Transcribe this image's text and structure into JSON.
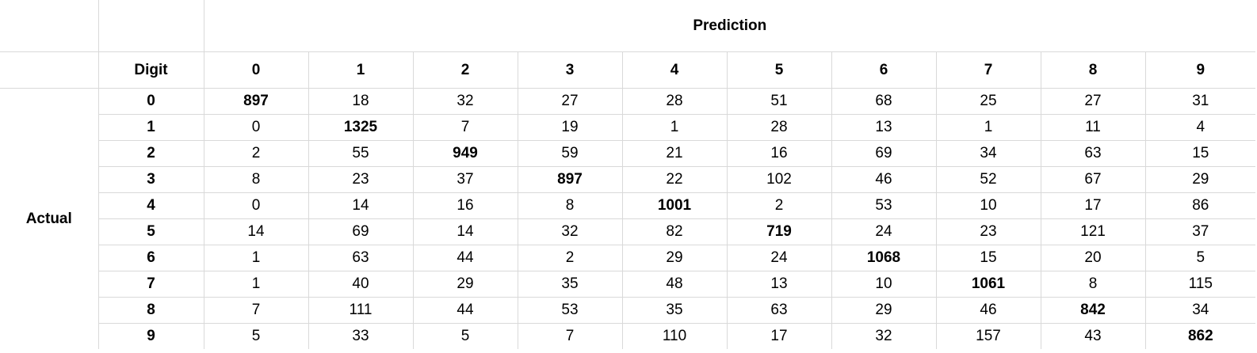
{
  "header": {
    "prediction_label": "Prediction",
    "digit_label": "Digit",
    "actual_label": "Actual"
  },
  "columns": [
    "0",
    "1",
    "2",
    "3",
    "4",
    "5",
    "6",
    "7",
    "8",
    "9"
  ],
  "rows": [
    {
      "digit": "0",
      "values": [
        "897",
        "18",
        "32",
        "27",
        "28",
        "51",
        "68",
        "25",
        "27",
        "31"
      ]
    },
    {
      "digit": "1",
      "values": [
        "0",
        "1325",
        "7",
        "19",
        "1",
        "28",
        "13",
        "1",
        "11",
        "4"
      ]
    },
    {
      "digit": "2",
      "values": [
        "2",
        "55",
        "949",
        "59",
        "21",
        "16",
        "69",
        "34",
        "63",
        "15"
      ]
    },
    {
      "digit": "3",
      "values": [
        "8",
        "23",
        "37",
        "897",
        "22",
        "102",
        "46",
        "52",
        "67",
        "29"
      ]
    },
    {
      "digit": "4",
      "values": [
        "0",
        "14",
        "16",
        "8",
        "1001",
        "2",
        "53",
        "10",
        "17",
        "86"
      ]
    },
    {
      "digit": "5",
      "values": [
        "14",
        "69",
        "14",
        "32",
        "82",
        "719",
        "24",
        "23",
        "121",
        "37"
      ]
    },
    {
      "digit": "6",
      "values": [
        "1",
        "63",
        "44",
        "2",
        "29",
        "24",
        "1068",
        "15",
        "20",
        "5"
      ]
    },
    {
      "digit": "7",
      "values": [
        "1",
        "40",
        "29",
        "35",
        "48",
        "13",
        "10",
        "1061",
        "8",
        "115"
      ]
    },
    {
      "digit": "8",
      "values": [
        "7",
        "111",
        "44",
        "53",
        "35",
        "63",
        "29",
        "46",
        "842",
        "34"
      ]
    },
    {
      "digit": "9",
      "values": [
        "5",
        "33",
        "5",
        "7",
        "110",
        "17",
        "32",
        "157",
        "43",
        "862"
      ]
    }
  ]
}
